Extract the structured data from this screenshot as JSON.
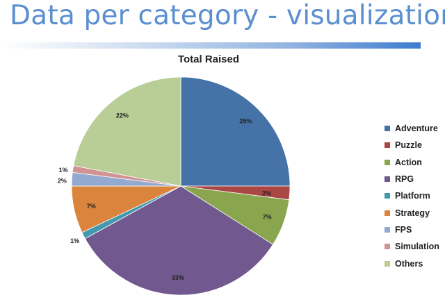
{
  "header": {
    "title": "Data per category - visualization"
  },
  "colors": {
    "title_text": "#5a8fd0",
    "bar": "#3f7bd0"
  },
  "chart_data": {
    "type": "pie",
    "title": "Total Raised",
    "legend_position": "right",
    "start_angle_deg": 0,
    "direction": "clockwise",
    "slices": [
      {
        "label": "Adventure",
        "value": 25,
        "display": "25%",
        "color": "#4572a7"
      },
      {
        "label": "Puzzle",
        "value": 2,
        "display": "2%",
        "color": "#aa4643"
      },
      {
        "label": "Action",
        "value": 7,
        "display": "7%",
        "color": "#89a54e"
      },
      {
        "label": "RPG",
        "value": 33,
        "display": "33%",
        "color": "#71588f"
      },
      {
        "label": "Platform",
        "value": 1,
        "display": "1%",
        "color": "#4198af"
      },
      {
        "label": "Strategy",
        "value": 7,
        "display": "7%",
        "color": "#db843d"
      },
      {
        "label": "FPS",
        "value": 2,
        "display": "2%",
        "color": "#93a9cf"
      },
      {
        "label": "Simulation",
        "value": 1,
        "display": "1%",
        "color": "#d19392"
      },
      {
        "label": "Others",
        "value": 22,
        "display": "22%",
        "color": "#b9cd96"
      }
    ]
  }
}
